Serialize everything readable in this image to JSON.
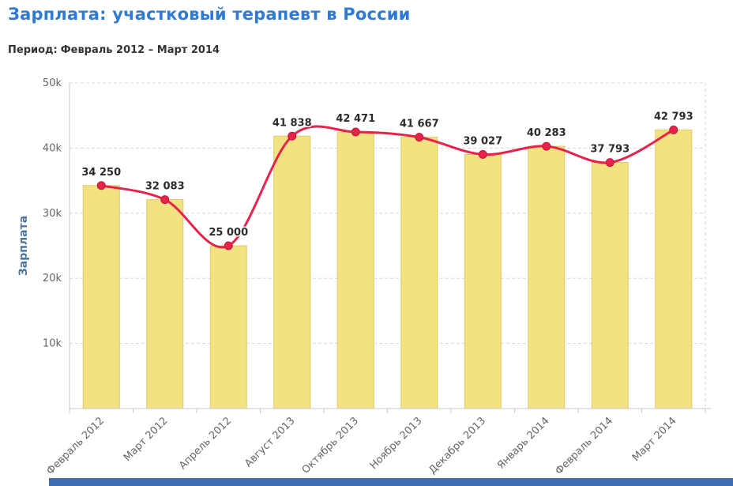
{
  "page": {
    "title": "Зарплата: участковый терапевт в России",
    "period_label": "Период:",
    "period_value": "Февраль 2012 – Март 2014"
  },
  "chart_data": {
    "type": "bar",
    "overlay": "line",
    "title": "Зарплата: участковый терапевт в России",
    "subtitle": "Период: Февраль 2012 – Март 2014",
    "categories": [
      "Февраль 2012",
      "Март 2012",
      "Апрель 2012",
      "Август 2013",
      "Октябрь 2013",
      "Ноябрь 2013",
      "Декабрь 2013",
      "Январь 2014",
      "Февраль 2014",
      "Март 2014"
    ],
    "values": [
      34250,
      32083,
      25000,
      41838,
      42471,
      41667,
      39027,
      40283,
      37793,
      42793
    ],
    "value_labels": [
      "34 250",
      "32 083",
      "25 000",
      "41 838",
      "42 471",
      "41 667",
      "39 027",
      "40 283",
      "37 793",
      "42 793"
    ],
    "xlabel": "",
    "ylabel": "Зарплата",
    "ylim": [
      0,
      50000
    ],
    "ytick_values": [
      10000,
      20000,
      30000,
      40000,
      50000
    ],
    "ytick_labels": [
      "10k",
      "20k",
      "30k",
      "40k",
      "50k"
    ],
    "grid": "dashed-horizontal",
    "legend": "none",
    "colors": {
      "title": "#2D7BD6",
      "subtitle": "#333333",
      "bar_fill": "#F2E282",
      "bar_stroke": "#DECB64",
      "line": "#E7234B",
      "marker": "#E7234B",
      "marker_stroke": "#C2183C",
      "axis_line": "#C8C8C8",
      "grid_line": "#D8D8D8",
      "tick_label": "#666666",
      "data_label": "#2B2B2B",
      "axis_title": "#4D759E",
      "footer_strip": "#3F6DB3"
    }
  }
}
